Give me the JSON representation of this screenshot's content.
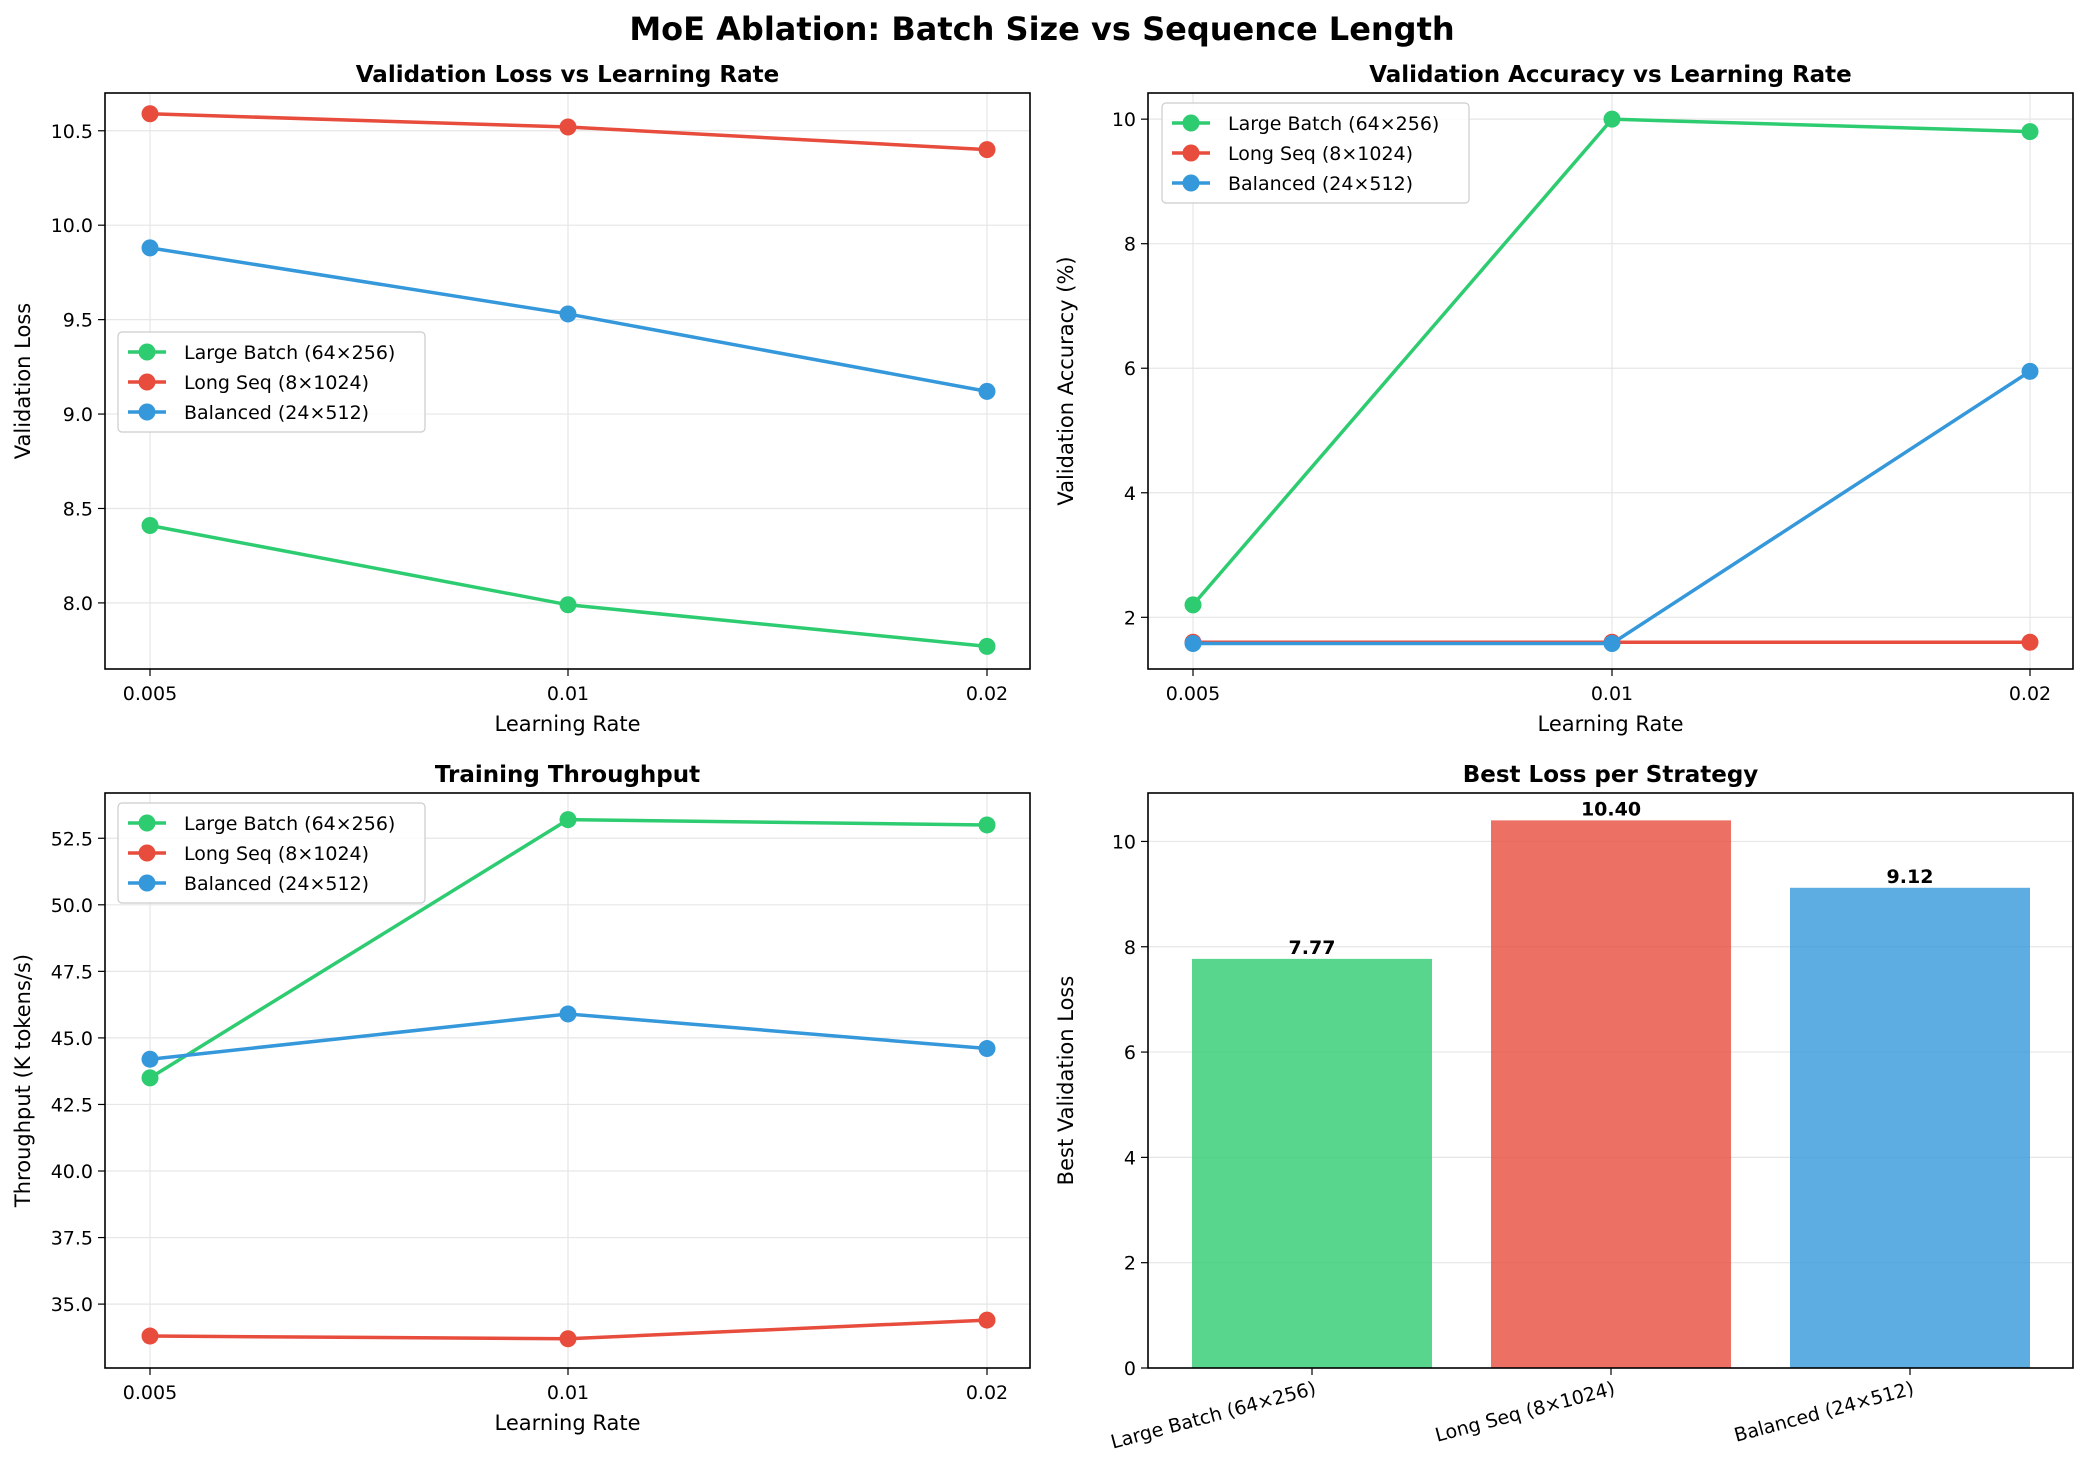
{
  "figure_title": "MoE Ablation: Batch Size vs Sequence Length",
  "colors": {
    "green": "#2ecc71",
    "red": "#e74c3c",
    "blue": "#3498db"
  },
  "chart_data": [
    {
      "type": "line",
      "title": "Validation Loss vs Learning Rate",
      "xlabel": "Learning Rate",
      "ylabel": "Validation Loss",
      "x": [
        "0.005",
        "0.01",
        "0.02"
      ],
      "ylim": [
        7.65,
        10.7
      ],
      "yticks": [
        "8.0",
        "8.5",
        "9.0",
        "9.5",
        "10.0",
        "10.5"
      ],
      "legend": "center-left",
      "grid": true,
      "series": [
        {
          "name": "Large Batch (64×256)",
          "color": "#2ecc71",
          "values": [
            8.41,
            7.99,
            7.77
          ]
        },
        {
          "name": "Long Seq (8×1024)",
          "color": "#e74c3c",
          "values": [
            10.59,
            10.52,
            10.4
          ]
        },
        {
          "name": "Balanced (24×512)",
          "color": "#3498db",
          "values": [
            9.88,
            9.53,
            9.12
          ]
        }
      ]
    },
    {
      "type": "line",
      "title": "Validation Accuracy vs Learning Rate",
      "xlabel": "Learning Rate",
      "ylabel": "Validation Accuracy (%)",
      "x": [
        "0.005",
        "0.01",
        "0.02"
      ],
      "ylim": [
        1.17,
        10.42
      ],
      "yticks": [
        "2",
        "4",
        "6",
        "8",
        "10"
      ],
      "legend": "upper-left",
      "grid": true,
      "series": [
        {
          "name": "Large Batch (64×256)",
          "color": "#2ecc71",
          "values": [
            2.2,
            10.0,
            9.8
          ]
        },
        {
          "name": "Long Seq (8×1024)",
          "color": "#e74c3c",
          "values": [
            1.6,
            1.6,
            1.6
          ]
        },
        {
          "name": "Balanced (24×512)",
          "color": "#3498db",
          "values": [
            1.58,
            1.58,
            5.95
          ]
        }
      ]
    },
    {
      "type": "line",
      "title": "Training Throughput",
      "xlabel": "Learning Rate",
      "ylabel": "Throughput (K tokens/s)",
      "x": [
        "0.005",
        "0.01",
        "0.02"
      ],
      "ylim": [
        32.6,
        54.2
      ],
      "yticks": [
        "35.0",
        "37.5",
        "40.0",
        "42.5",
        "45.0",
        "47.5",
        "50.0",
        "52.5"
      ],
      "legend": "upper-left",
      "grid": true,
      "series": [
        {
          "name": "Large Batch (64×256)",
          "color": "#2ecc71",
          "values": [
            43.5,
            53.2,
            53.0
          ]
        },
        {
          "name": "Long Seq (8×1024)",
          "color": "#e74c3c",
          "values": [
            33.8,
            33.7,
            34.4
          ]
        },
        {
          "name": "Balanced (24×512)",
          "color": "#3498db",
          "values": [
            44.2,
            45.9,
            44.6
          ]
        }
      ]
    },
    {
      "type": "bar",
      "title": "Best Loss per Strategy",
      "xlabel": "",
      "ylabel": "Best Validation Loss",
      "categories": [
        "Large Batch (64×256)",
        "Long Seq (8×1024)",
        "Balanced (24×512)"
      ],
      "values": [
        7.77,
        10.4,
        9.12
      ],
      "value_labels": [
        "7.77",
        "10.40",
        "9.12"
      ],
      "colors": [
        "#2ecc71",
        "#e74c3c",
        "#3498db"
      ],
      "ylim": [
        0,
        10.92
      ],
      "yticks": [
        "0",
        "2",
        "4",
        "6",
        "8",
        "10"
      ],
      "grid": true
    }
  ]
}
